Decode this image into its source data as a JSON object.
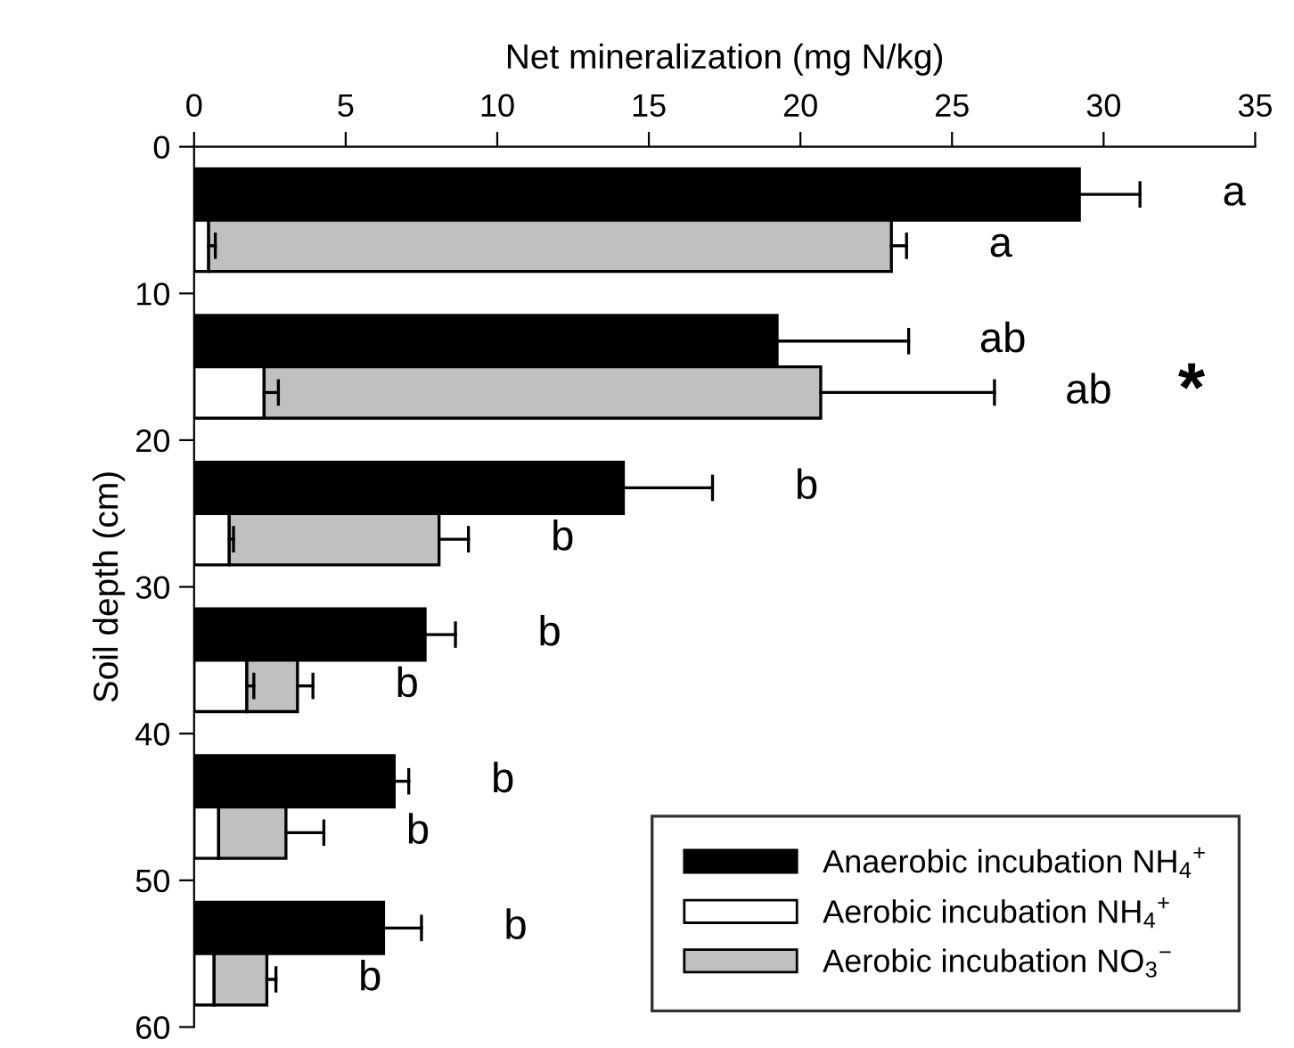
{
  "chart_data": {
    "type": "bar",
    "orientation": "horizontal",
    "stacked": true,
    "xlabel": "Net mineralization (mg N/kg)",
    "ylabel": "Soil depth (cm)",
    "xlim": [
      0,
      35
    ],
    "xticks": [
      0,
      5,
      10,
      15,
      20,
      25,
      30,
      35
    ],
    "ylim": [
      60,
      0
    ],
    "yticks": [
      0,
      10,
      20,
      30,
      40,
      50,
      60
    ],
    "grid": false,
    "legend": "bottom right",
    "x": [
      3.25,
      6.75,
      13.25,
      16.75,
      23.25,
      26.75,
      33.25,
      36.75,
      43.25,
      46.75,
      53.25,
      56.75
    ],
    "series": [
      {
        "name": "Anaerobic incubation NH$_{4}$$^{+}$",
        "color": "#000000",
        "values": [
          29.2,
          null,
          19.23,
          null,
          14.16,
          null,
          7.62,
          null,
          6.6,
          null,
          6.25,
          null
        ],
        "errors": [
          [
            29.2,
            31.2
          ],
          null,
          [
            19.23,
            23.57
          ],
          null,
          [
            14.16,
            17.1
          ],
          null,
          [
            7.62,
            8.62
          ],
          null,
          [
            6.6,
            7.08
          ],
          null,
          [
            6.25,
            7.5
          ],
          null
        ]
      },
      {
        "name": "Aerobic incubation NH$_{4}$$^{+}$",
        "color": "#ffffff",
        "values": [
          null,
          0.48,
          null,
          2.31,
          null,
          1.16,
          null,
          1.74,
          null,
          0.81,
          null,
          0.66
        ],
        "errors": [
          null,
          [
            0.48,
            0.7
          ],
          null,
          [
            2.31,
            2.78
          ],
          null,
          [
            1.16,
            1.3
          ],
          null,
          [
            1.74,
            1.97
          ],
          null,
          null,
          null,
          null
        ]
      },
      {
        "name": "Aerobic incubation NO$_{3}$$^{−}$",
        "color": "#c0c0c0",
        "values": [
          null,
          22.52,
          null,
          18.36,
          null,
          6.92,
          null,
          1.67,
          null,
          2.22,
          null,
          1.74
        ],
        "errors": [
          null,
          [
            23.0,
            23.5
          ],
          null,
          [
            20.67,
            26.4
          ],
          null,
          [
            8.08,
            9.05
          ],
          null,
          [
            3.41,
            3.92
          ],
          null,
          [
            3.03,
            4.28
          ],
          null,
          [
            2.4,
            2.7
          ]
        ]
      }
    ],
    "annotations": [
      "a",
      "a",
      "ab",
      "ab",
      "b",
      "b",
      "b",
      "b",
      "b",
      "b",
      "b",
      "b",
      "*"
    ]
  }
}
